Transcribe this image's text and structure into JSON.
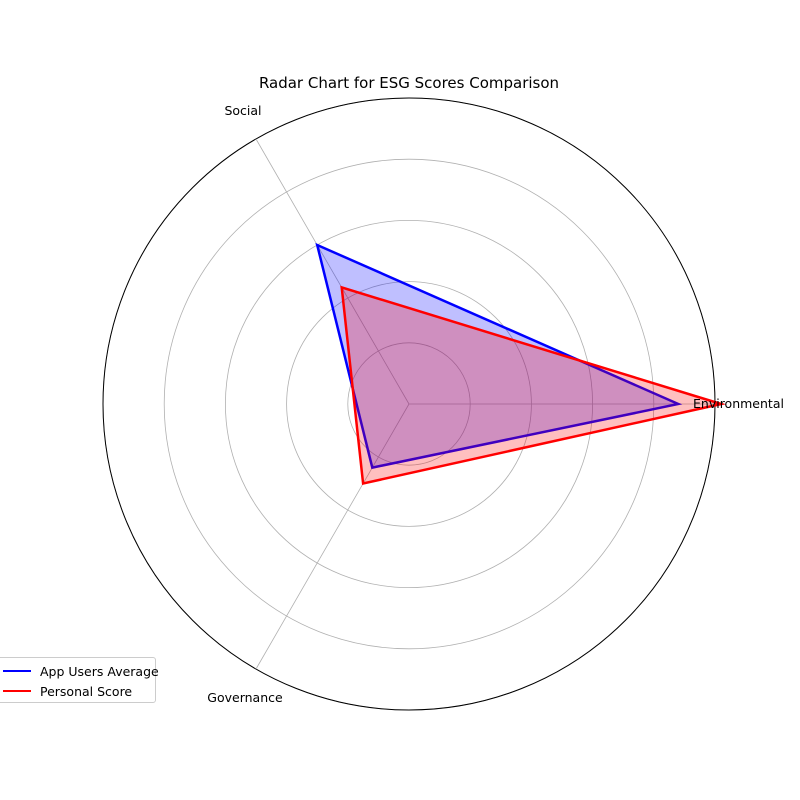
{
  "chart_data": {
    "type": "radar",
    "title": "Radar Chart for ESG Scores Comparison",
    "categories": [
      "Environmental",
      "Social",
      "Governance"
    ],
    "rmax": 50,
    "rgrid": [
      10,
      20,
      30,
      40,
      50
    ],
    "grid": true,
    "legend_placement": "lower-left",
    "series": [
      {
        "name": "App Users Average",
        "values": [
          44,
          30,
          12
        ],
        "color": "#0000ff"
      },
      {
        "name": "Personal Score",
        "values": [
          51,
          22,
          15
        ],
        "color": "#ff0000"
      }
    ]
  }
}
